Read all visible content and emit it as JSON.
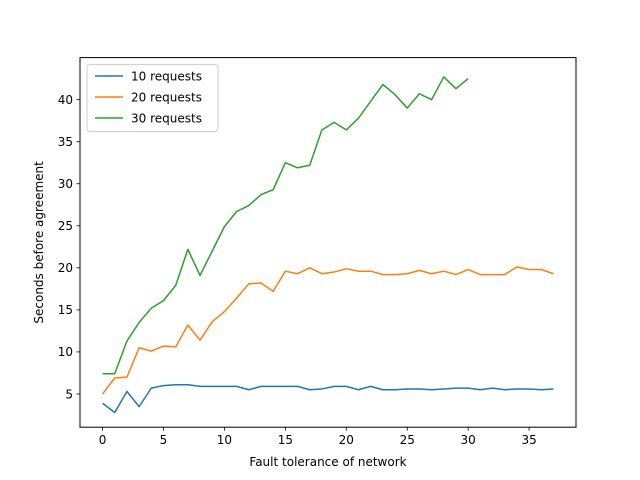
{
  "chart_data": {
    "type": "line",
    "xlabel": "Fault tolerance of network",
    "ylabel": "Seconds before agreement",
    "xlim": [
      -1.85,
      38.85
    ],
    "ylim": [
      1.05,
      45.0
    ],
    "xticks": [
      0,
      5,
      10,
      15,
      20,
      25,
      30,
      35
    ],
    "yticks": [
      5,
      10,
      15,
      20,
      25,
      30,
      35,
      40
    ],
    "grid": false,
    "legend_position": "upper left",
    "series": [
      {
        "name": "10 requests",
        "color": "#1f77b4",
        "x": [
          0,
          1,
          2,
          3,
          4,
          5,
          6,
          7,
          8,
          9,
          10,
          11,
          12,
          13,
          14,
          15,
          16,
          17,
          18,
          19,
          20,
          21,
          22,
          23,
          24,
          25,
          26,
          27,
          28,
          29,
          30,
          31,
          32,
          33,
          34,
          35,
          36,
          37
        ],
        "y": [
          3.9,
          2.8,
          5.3,
          3.5,
          5.7,
          6.0,
          6.1,
          6.1,
          5.9,
          5.9,
          5.9,
          5.9,
          5.5,
          5.9,
          5.9,
          5.9,
          5.9,
          5.5,
          5.6,
          5.9,
          5.9,
          5.5,
          5.9,
          5.5,
          5.5,
          5.6,
          5.6,
          5.5,
          5.6,
          5.7,
          5.7,
          5.5,
          5.7,
          5.5,
          5.6,
          5.6,
          5.5,
          5.6
        ]
      },
      {
        "name": "20 requests",
        "color": "#ff7f0e",
        "x": [
          0,
          1,
          2,
          3,
          4,
          5,
          6,
          7,
          8,
          9,
          10,
          11,
          12,
          13,
          14,
          15,
          16,
          17,
          18,
          19,
          20,
          21,
          22,
          23,
          24,
          25,
          26,
          27,
          28,
          29,
          30,
          31,
          32,
          33,
          34,
          35,
          36,
          37
        ],
        "y": [
          5.0,
          6.9,
          7.0,
          10.5,
          10.1,
          10.7,
          10.6,
          13.2,
          11.4,
          13.6,
          14.8,
          16.4,
          18.1,
          18.2,
          17.2,
          19.6,
          19.3,
          20.0,
          19.3,
          19.5,
          19.9,
          19.6,
          19.6,
          19.2,
          19.2,
          19.3,
          19.7,
          19.3,
          19.6,
          19.2,
          19.8,
          19.2,
          19.2,
          19.2,
          20.1,
          19.8,
          19.8,
          19.3
        ]
      },
      {
        "name": "30 requests",
        "color": "#2ca02c",
        "x": [
          0,
          1,
          2,
          3,
          4,
          5,
          6,
          7,
          8,
          9,
          10,
          11,
          12,
          13,
          14,
          15,
          16,
          17,
          18,
          19,
          20,
          21,
          22,
          23,
          24,
          25,
          26,
          27,
          28,
          29,
          30
        ],
        "y": [
          7.4,
          7.4,
          11.3,
          13.5,
          15.2,
          16.1,
          17.9,
          22.2,
          19.1,
          22.0,
          24.9,
          26.7,
          27.4,
          28.7,
          29.3,
          32.5,
          31.9,
          32.2,
          36.4,
          37.3,
          36.4,
          37.8,
          39.8,
          41.8,
          40.6,
          39.0,
          40.7,
          40.0,
          42.7,
          41.3,
          42.5
        ]
      }
    ]
  }
}
